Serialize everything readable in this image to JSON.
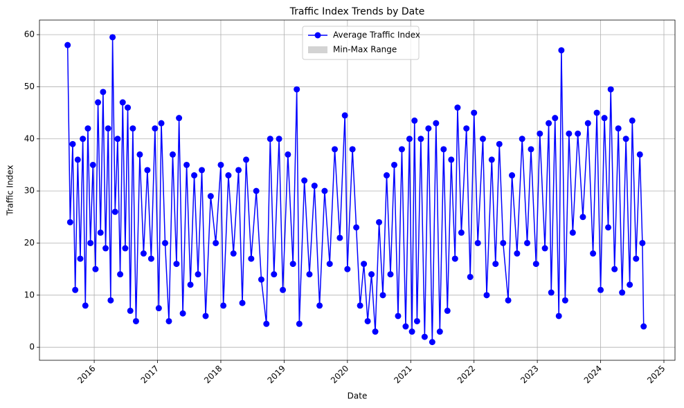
{
  "chart_data": {
    "type": "line",
    "title": "Traffic Index Trends by Date",
    "x_label": "Date",
    "y_label": "Traffic Index",
    "x": [
      2015.58,
      2015.62,
      2015.66,
      2015.7,
      2015.74,
      2015.78,
      2015.82,
      2015.86,
      2015.9,
      2015.94,
      2015.98,
      2016.02,
      2016.06,
      2016.1,
      2016.14,
      2016.18,
      2016.22,
      2016.26,
      2016.29,
      2016.33,
      2016.37,
      2016.41,
      2016.45,
      2016.49,
      2016.53,
      2016.57,
      2016.61,
      2016.66,
      2016.72,
      2016.78,
      2016.84,
      2016.9,
      2016.96,
      2017.02,
      2017.06,
      2017.12,
      2017.18,
      2017.24,
      2017.3,
      2017.34,
      2017.4,
      2017.46,
      2017.52,
      2017.58,
      2017.64,
      2017.7,
      2017.76,
      2017.84,
      2017.92,
      2018.0,
      2018.04,
      2018.12,
      2018.2,
      2018.28,
      2018.34,
      2018.4,
      2018.48,
      2018.56,
      2018.64,
      2018.72,
      2018.78,
      2018.84,
      2018.92,
      2018.98,
      2019.06,
      2019.14,
      2019.2,
      2019.24,
      2019.32,
      2019.4,
      2019.48,
      2019.56,
      2019.64,
      2019.72,
      2019.8,
      2019.88,
      2019.96,
      2020.0,
      2020.08,
      2020.14,
      2020.2,
      2020.26,
      2020.32,
      2020.38,
      2020.44,
      2020.5,
      2020.56,
      2020.62,
      2020.68,
      2020.74,
      2020.8,
      2020.86,
      2020.92,
      2020.98,
      2021.02,
      2021.06,
      2021.1,
      2021.16,
      2021.22,
      2021.28,
      2021.34,
      2021.4,
      2021.46,
      2021.52,
      2021.58,
      2021.64,
      2021.7,
      2021.74,
      2021.8,
      2021.88,
      2021.94,
      2022.0,
      2022.06,
      2022.14,
      2022.2,
      2022.28,
      2022.34,
      2022.4,
      2022.46,
      2022.54,
      2022.6,
      2022.68,
      2022.76,
      2022.84,
      2022.9,
      2022.98,
      2023.04,
      2023.12,
      2023.18,
      2023.22,
      2023.28,
      2023.34,
      2023.38,
      2023.44,
      2023.5,
      2023.56,
      2023.64,
      2023.72,
      2023.8,
      2023.88,
      2023.94,
      2024.0,
      2024.06,
      2024.12,
      2024.16,
      2024.22,
      2024.28,
      2024.34,
      2024.4,
      2024.46,
      2024.5,
      2024.56,
      2024.62,
      2024.66,
      2024.68
    ],
    "series": [
      {
        "name": "Average Traffic Index",
        "color": "#0000ff",
        "values": [
          58,
          24,
          39,
          11,
          36,
          17,
          40,
          8,
          42,
          20,
          35,
          15,
          47,
          22,
          49,
          19,
          42,
          9,
          59.5,
          26,
          40,
          14,
          47,
          19,
          46,
          7,
          42,
          5,
          37,
          18,
          34,
          17,
          42,
          7.5,
          43,
          20,
          5,
          37,
          16,
          44,
          6.5,
          35,
          12,
          33,
          14,
          34,
          6,
          29,
          20,
          35,
          8,
          33,
          18,
          34,
          8.5,
          36,
          17,
          30,
          13,
          4.5,
          40,
          14,
          40,
          11,
          37,
          16,
          49.5,
          4.5,
          32,
          14,
          31,
          8,
          30,
          16,
          38,
          21,
          44.5,
          15,
          38,
          23,
          8,
          16,
          5,
          14,
          3,
          24,
          10,
          33,
          14,
          35,
          6,
          38,
          4,
          40,
          3,
          43.5,
          5,
          40,
          2,
          42,
          1,
          43,
          3,
          38,
          7,
          36,
          17,
          46,
          22,
          42,
          13.5,
          45,
          20,
          40,
          10,
          36,
          16,
          39,
          20,
          9,
          33,
          18,
          40,
          20,
          38,
          16,
          41,
          19,
          43,
          10.5,
          44,
          6,
          57,
          9,
          41,
          22,
          41,
          25,
          43,
          18,
          45,
          11,
          44,
          23,
          49.5,
          15,
          42,
          10.5,
          40,
          12,
          43.5,
          17,
          37,
          20,
          4
        ]
      },
      {
        "name": "Min-Max Range",
        "color": "#d3d3d3"
      }
    ],
    "xlim": [
      2015.135,
      2025.175
    ],
    "xticks": [
      2016,
      2017,
      2018,
      2019,
      2020,
      2021,
      2022,
      2023,
      2024,
      2025
    ],
    "ylim": [
      -2.5,
      62.8
    ],
    "yticks": [
      0,
      10,
      20,
      30,
      40,
      50,
      60
    ],
    "grid": true,
    "legend": "upper center"
  }
}
